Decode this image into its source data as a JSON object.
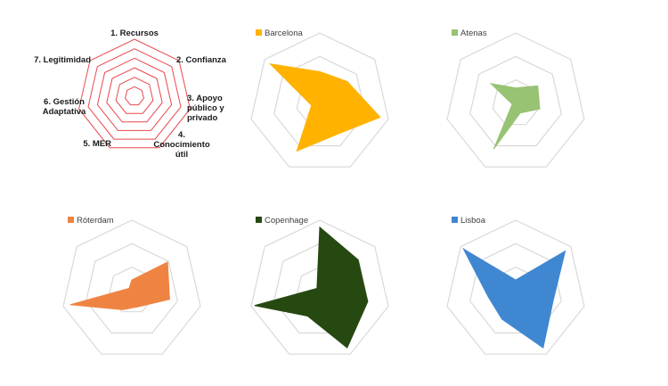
{
  "axes": {
    "labels": [
      [
        "1. Recursos"
      ],
      [
        "2. Confianza"
      ],
      [
        "3. Apoyo",
        "público y",
        "privado"
      ],
      [
        "4.",
        "Conocimiento",
        "útil"
      ],
      [
        "5. MER"
      ],
      [
        "6. Gestión",
        "Adaptativa"
      ],
      [
        "7. Legitimidad"
      ]
    ]
  },
  "chart_data": [
    {
      "type": "radar",
      "role": "legend-key",
      "axes": [
        "1. Recursos",
        "2. Confianza",
        "3. Apoyo público y privado",
        "4. Conocimiento útil",
        "5. MER",
        "6. Gestión Adaptativa",
        "7. Legitimidad"
      ],
      "rings": 6,
      "grid_color": "#e8474b"
    },
    {
      "type": "radar",
      "series": [
        {
          "name": "Barcelona",
          "color": "#ffb300",
          "values": [
            0.45,
            0.5,
            0.88,
            0.5,
            0.75,
            0.12,
            0.9
          ]
        }
      ],
      "rings": 3,
      "grid": true
    },
    {
      "type": "radar",
      "series": [
        {
          "name": "Atenas",
          "color": "#97c373",
          "values": [
            0.22,
            0.4,
            0.35,
            0.15,
            0.72,
            0.05,
            0.45
          ]
        }
      ],
      "rings": 3,
      "grid": true
    },
    {
      "type": "radar",
      "series": [
        {
          "name": "Róterdam",
          "color": "#ef8442",
          "values": [
            0.15,
            0.65,
            0.55,
            0.25,
            0.3,
            0.9,
            0.05
          ]
        }
      ],
      "rings": 3,
      "grid": true
    },
    {
      "type": "radar",
      "series": [
        {
          "name": "Copenhage",
          "color": "#264911",
          "values": [
            0.9,
            0.7,
            0.7,
            0.9,
            0.4,
            0.95,
            0.05
          ]
        }
      ],
      "rings": 3,
      "grid": true
    },
    {
      "type": "radar",
      "series": [
        {
          "name": "Lisboa",
          "color": "#3f87d1",
          "values": [
            0.15,
            0.9,
            0.55,
            0.9,
            0.45,
            0.4,
            0.95
          ]
        }
      ],
      "rings": 3,
      "grid": true
    }
  ]
}
